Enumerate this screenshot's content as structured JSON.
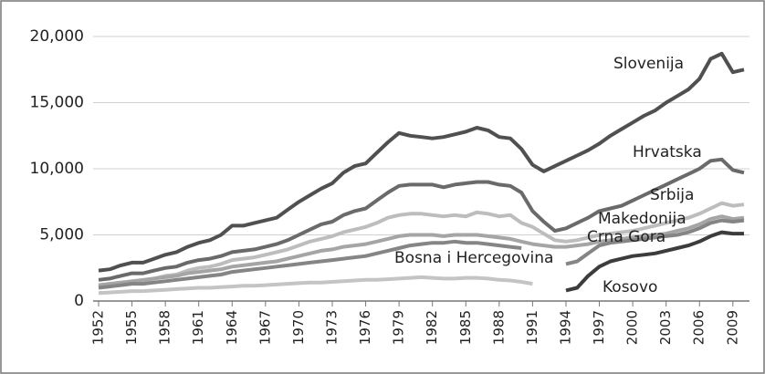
{
  "chart_data": {
    "type": "line",
    "x": [
      1952,
      1953,
      1954,
      1955,
      1956,
      1957,
      1958,
      1959,
      1960,
      1961,
      1962,
      1963,
      1964,
      1965,
      1966,
      1967,
      1968,
      1969,
      1970,
      1971,
      1972,
      1973,
      1974,
      1975,
      1976,
      1977,
      1978,
      1979,
      1980,
      1981,
      1982,
      1983,
      1984,
      1985,
      1986,
      1987,
      1988,
      1989,
      1990,
      1991,
      1992,
      1993,
      1994,
      1995,
      1996,
      1997,
      1998,
      1999,
      2000,
      2001,
      2002,
      2003,
      2004,
      2005,
      2006,
      2007,
      2008,
      2009,
      2010
    ],
    "xlim": [
      1952,
      2010
    ],
    "xticks": [
      1952,
      1955,
      1958,
      1961,
      1964,
      1967,
      1970,
      1973,
      1976,
      1979,
      1982,
      1985,
      1988,
      1991,
      1994,
      1997,
      2000,
      2003,
      2006,
      2009
    ],
    "ylim": [
      0,
      20000
    ],
    "yticks": [
      0,
      {
        "value": 5000,
        "label": "5,000"
      },
      {
        "value": 10000,
        "label": "10,000"
      },
      {
        "value": 15000,
        "label": "15,000"
      },
      {
        "value": 20000,
        "label": "20,000"
      }
    ],
    "grid": true,
    "series": [
      {
        "name": "Slovenija",
        "color": "#505050",
        "values": [
          2300,
          2400,
          2700,
          2900,
          2900,
          3200,
          3500,
          3700,
          4100,
          4400,
          4600,
          5000,
          5700,
          5700,
          5900,
          6100,
          6300,
          6900,
          7500,
          8000,
          8500,
          8900,
          9700,
          10200,
          10400,
          11200,
          12000,
          12700,
          12500,
          12400,
          12300,
          12400,
          12600,
          12800,
          13100,
          12900,
          12400,
          12300,
          11500,
          10300,
          9800,
          10200,
          10600,
          11000,
          11400,
          11900,
          12500,
          13000,
          13500,
          14000,
          14400,
          15000,
          15500,
          16000,
          16800,
          18300,
          18700,
          17300,
          17500
        ]
      },
      {
        "name": "Hrvatska",
        "color": "#6a6a6a",
        "values": [
          1600,
          1700,
          1900,
          2100,
          2100,
          2300,
          2500,
          2600,
          2900,
          3100,
          3200,
          3400,
          3700,
          3800,
          3900,
          4100,
          4300,
          4600,
          5000,
          5400,
          5800,
          6000,
          6500,
          6800,
          7000,
          7600,
          8200,
          8700,
          8800,
          8800,
          8800,
          8600,
          8800,
          8900,
          9000,
          9000,
          8800,
          8700,
          8200,
          6800,
          6000,
          5300,
          5500,
          5900,
          6300,
          6800,
          7000,
          7200,
          7600,
          8000,
          8400,
          8800,
          9200,
          9600,
          10000,
          10600,
          10700,
          9900,
          9700
        ]
      },
      {
        "name": "Srbija",
        "color": "#bdbdbd",
        "values": [
          1100,
          1200,
          1300,
          1500,
          1500,
          1700,
          1900,
          2000,
          2300,
          2500,
          2600,
          2800,
          3100,
          3200,
          3300,
          3500,
          3700,
          3900,
          4200,
          4500,
          4700,
          4900,
          5200,
          5400,
          5600,
          5900,
          6300,
          6500,
          6600,
          6600,
          6500,
          6400,
          6500,
          6400,
          6700,
          6600,
          6400,
          6500,
          5900,
          5600,
          5100,
          4600,
          4500,
          4600,
          4800,
          5000,
          5100,
          5200,
          5300,
          5500,
          5700,
          5900,
          6100,
          6300,
          6600,
          7000,
          7400,
          7200,
          7300
        ]
      },
      {
        "name": "Makedonija",
        "color": "#a5a5a5",
        "values": [
          1200,
          1300,
          1400,
          1500,
          1600,
          1700,
          1800,
          1900,
          2100,
          2200,
          2300,
          2400,
          2600,
          2700,
          2800,
          2900,
          3000,
          3200,
          3400,
          3600,
          3800,
          3900,
          4100,
          4200,
          4300,
          4500,
          4700,
          4900,
          5000,
          5000,
          5000,
          4900,
          5000,
          5000,
          5000,
          4900,
          4800,
          4700,
          4500,
          4300,
          4200,
          4100,
          4100,
          4200,
          4300,
          4500,
          4600,
          4700,
          4800,
          4900,
          5000,
          5100,
          5300,
          5500,
          5800,
          6200,
          6400,
          6200,
          6300
        ]
      },
      {
        "name": "Crna Gora",
        "color": "#858585",
        "values": [
          1000,
          1100,
          1200,
          1300,
          1300,
          1400,
          1500,
          1600,
          1700,
          1800,
          1900,
          2000,
          2200,
          2300,
          2400,
          2500,
          2600,
          2700,
          2800,
          2900,
          3000,
          3100,
          3200,
          3300,
          3400,
          3600,
          3800,
          4000,
          4200,
          4300,
          4400,
          4400,
          4500,
          4400,
          4400,
          4300,
          4200,
          4100,
          4000,
          null,
          null,
          null,
          2800,
          3000,
          3600,
          4200,
          4400,
          4500,
          4600,
          4700,
          4800,
          4900,
          5000,
          5200,
          5500,
          5900,
          6100,
          6000,
          6100
        ]
      },
      {
        "name": "Bosna i Hercegovina",
        "color": "#c4c4c4",
        "values": [
          600,
          650,
          700,
          750,
          750,
          800,
          850,
          900,
          950,
          1000,
          1000,
          1050,
          1100,
          1150,
          1150,
          1200,
          1250,
          1300,
          1350,
          1400,
          1400,
          1450,
          1500,
          1550,
          1600,
          1600,
          1650,
          1700,
          1750,
          1800,
          1750,
          1700,
          1700,
          1750,
          1750,
          1700,
          1600,
          1550,
          1450,
          1300,
          null,
          null,
          null,
          null,
          null,
          null,
          null,
          null,
          null,
          null,
          null,
          null,
          null,
          null,
          null,
          null,
          null,
          null,
          null
        ]
      },
      {
        "name": "Kosovo",
        "color": "#3c3c3c",
        "values": [
          null,
          null,
          null,
          null,
          null,
          null,
          null,
          null,
          null,
          null,
          null,
          null,
          null,
          null,
          null,
          null,
          null,
          null,
          null,
          null,
          null,
          null,
          null,
          null,
          null,
          null,
          null,
          null,
          null,
          null,
          null,
          null,
          null,
          null,
          null,
          null,
          null,
          null,
          null,
          null,
          null,
          null,
          800,
          1000,
          1900,
          2600,
          3000,
          3200,
          3400,
          3500,
          3600,
          3800,
          4000,
          4200,
          4500,
          4900,
          5200,
          5100,
          5100
        ]
      }
    ]
  }
}
